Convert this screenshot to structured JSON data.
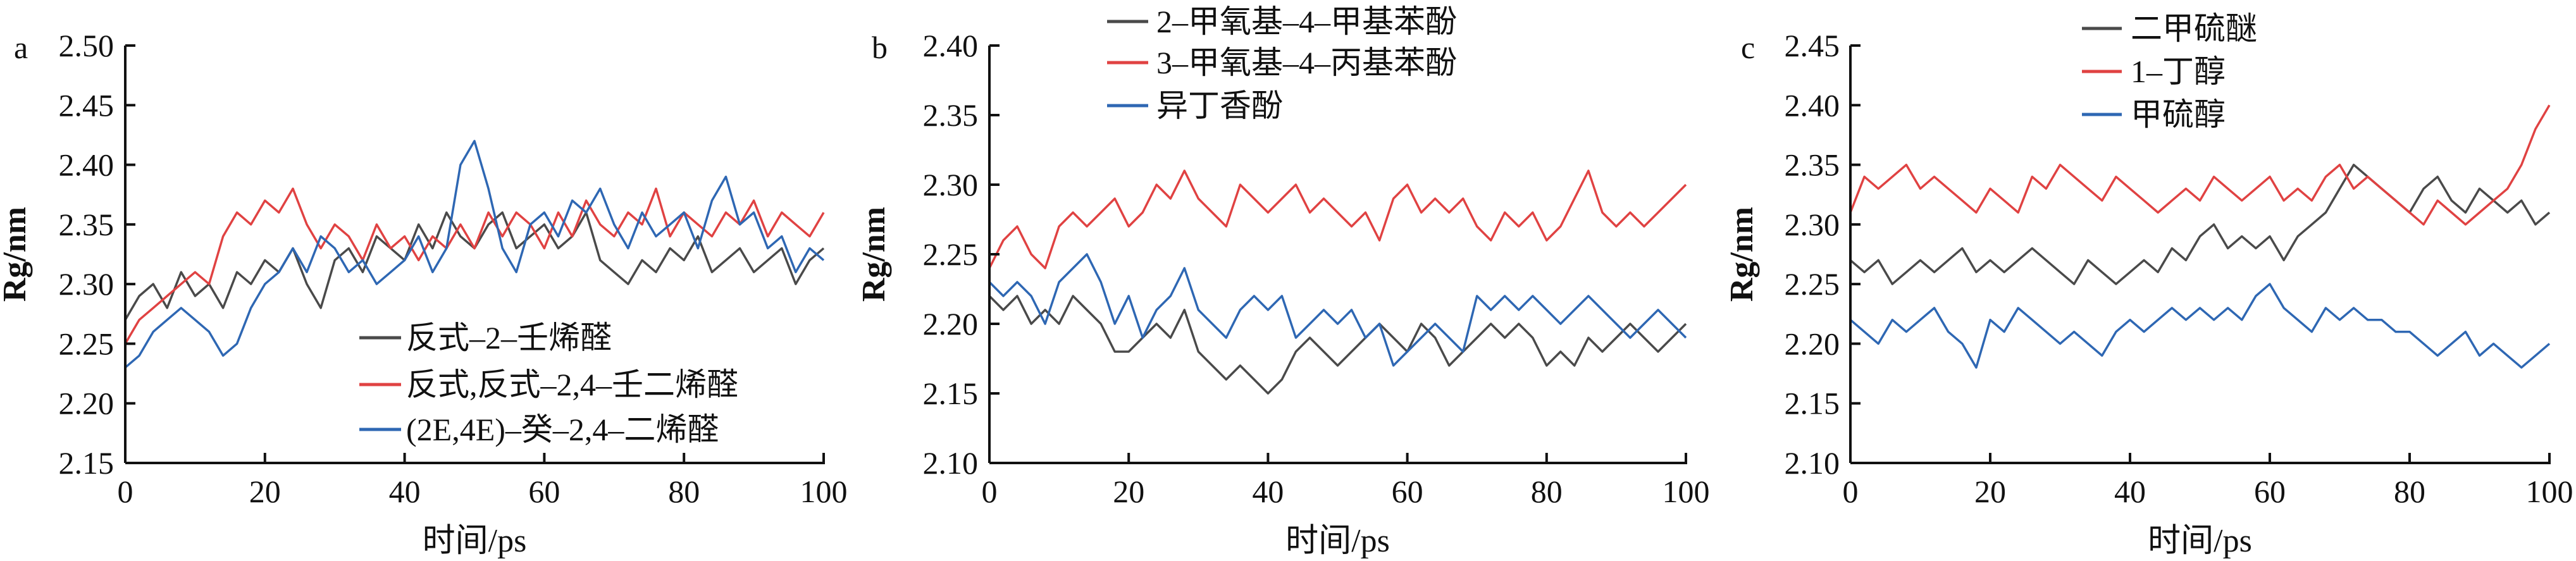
{
  "colors": {
    "gray": "#4a4a4a",
    "red": "#e04242",
    "blue": "#2e67b3"
  },
  "chart_data": [
    {
      "type": "line",
      "panel_label": "a",
      "xlabel": "时间/ps",
      "ylabel": "Rg/nm",
      "xlim": [
        0,
        100
      ],
      "ylim": [
        2.15,
        2.5
      ],
      "xticks": [
        "0",
        "20",
        "40",
        "60",
        "80",
        "100"
      ],
      "yticks": [
        "2.15",
        "2.20",
        "2.25",
        "2.30",
        "2.35",
        "2.40",
        "2.45",
        "2.50"
      ],
      "legend_position": "lower-right",
      "x_step": 2,
      "series": [
        {
          "name": "反式–2–壬烯醛",
          "color": "#4a4a4a",
          "values": [
            2.27,
            2.29,
            2.3,
            2.28,
            2.31,
            2.29,
            2.3,
            2.28,
            2.31,
            2.3,
            2.32,
            2.31,
            2.33,
            2.3,
            2.28,
            2.32,
            2.33,
            2.31,
            2.34,
            2.33,
            2.32,
            2.35,
            2.33,
            2.36,
            2.34,
            2.33,
            2.35,
            2.36,
            2.33,
            2.34,
            2.35,
            2.33,
            2.34,
            2.36,
            2.32,
            2.31,
            2.3,
            2.32,
            2.31,
            2.33,
            2.32,
            2.34,
            2.31,
            2.32,
            2.33,
            2.31,
            2.32,
            2.33,
            2.3,
            2.32,
            2.33
          ]
        },
        {
          "name": "反式,反式–2,4–壬二烯醛",
          "color": "#e04242",
          "values": [
            2.25,
            2.27,
            2.28,
            2.29,
            2.3,
            2.31,
            2.3,
            2.34,
            2.36,
            2.35,
            2.37,
            2.36,
            2.38,
            2.35,
            2.33,
            2.35,
            2.34,
            2.32,
            2.35,
            2.33,
            2.34,
            2.32,
            2.34,
            2.33,
            2.35,
            2.33,
            2.36,
            2.34,
            2.36,
            2.35,
            2.33,
            2.36,
            2.34,
            2.37,
            2.35,
            2.34,
            2.36,
            2.35,
            2.38,
            2.34,
            2.36,
            2.35,
            2.34,
            2.36,
            2.35,
            2.37,
            2.34,
            2.36,
            2.35,
            2.34,
            2.36
          ]
        },
        {
          "name": "(2E,4E)–癸–2,4–二烯醛",
          "color": "#2e67b3",
          "values": [
            2.23,
            2.24,
            2.26,
            2.27,
            2.28,
            2.27,
            2.26,
            2.24,
            2.25,
            2.28,
            2.3,
            2.31,
            2.33,
            2.31,
            2.34,
            2.33,
            2.31,
            2.32,
            2.3,
            2.31,
            2.32,
            2.34,
            2.31,
            2.33,
            2.4,
            2.42,
            2.38,
            2.33,
            2.31,
            2.35,
            2.36,
            2.34,
            2.37,
            2.36,
            2.38,
            2.35,
            2.33,
            2.36,
            2.34,
            2.35,
            2.36,
            2.33,
            2.37,
            2.39,
            2.35,
            2.36,
            2.33,
            2.34,
            2.31,
            2.33,
            2.32
          ]
        }
      ]
    },
    {
      "type": "line",
      "panel_label": "b",
      "xlabel": "时间/ps",
      "ylabel": "Rg/nm",
      "xlim": [
        0,
        100
      ],
      "ylim": [
        2.1,
        2.4
      ],
      "xticks": [
        "0",
        "20",
        "40",
        "60",
        "80",
        "100"
      ],
      "yticks": [
        "2.10",
        "2.15",
        "2.20",
        "2.25",
        "2.30",
        "2.35",
        "2.40"
      ],
      "legend_position": "top",
      "x_step": 2,
      "series": [
        {
          "name": "2–甲氧基–4–甲基苯酚",
          "color": "#4a4a4a",
          "values": [
            2.22,
            2.21,
            2.22,
            2.2,
            2.21,
            2.2,
            2.22,
            2.21,
            2.2,
            2.18,
            2.18,
            2.19,
            2.2,
            2.19,
            2.21,
            2.18,
            2.17,
            2.16,
            2.17,
            2.16,
            2.15,
            2.16,
            2.18,
            2.19,
            2.18,
            2.17,
            2.18,
            2.19,
            2.2,
            2.19,
            2.18,
            2.2,
            2.19,
            2.17,
            2.18,
            2.19,
            2.2,
            2.19,
            2.2,
            2.19,
            2.17,
            2.18,
            2.17,
            2.19,
            2.18,
            2.19,
            2.2,
            2.19,
            2.18,
            2.19,
            2.2
          ]
        },
        {
          "name": "3–甲氧基–4–丙基苯酚",
          "color": "#e04242",
          "values": [
            2.24,
            2.26,
            2.27,
            2.25,
            2.24,
            2.27,
            2.28,
            2.27,
            2.28,
            2.29,
            2.27,
            2.28,
            2.3,
            2.29,
            2.31,
            2.29,
            2.28,
            2.27,
            2.3,
            2.29,
            2.28,
            2.29,
            2.3,
            2.28,
            2.29,
            2.28,
            2.27,
            2.28,
            2.26,
            2.29,
            2.3,
            2.28,
            2.29,
            2.28,
            2.29,
            2.27,
            2.26,
            2.28,
            2.27,
            2.28,
            2.26,
            2.27,
            2.29,
            2.31,
            2.28,
            2.27,
            2.28,
            2.27,
            2.28,
            2.29,
            2.3
          ]
        },
        {
          "name": "异丁香酚",
          "color": "#2e67b3",
          "values": [
            2.23,
            2.22,
            2.23,
            2.22,
            2.2,
            2.23,
            2.24,
            2.25,
            2.23,
            2.2,
            2.22,
            2.19,
            2.21,
            2.22,
            2.24,
            2.21,
            2.2,
            2.19,
            2.21,
            2.22,
            2.21,
            2.22,
            2.19,
            2.2,
            2.21,
            2.2,
            2.21,
            2.19,
            2.2,
            2.17,
            2.18,
            2.19,
            2.2,
            2.19,
            2.18,
            2.22,
            2.21,
            2.22,
            2.21,
            2.22,
            2.21,
            2.2,
            2.21,
            2.22,
            2.21,
            2.2,
            2.19,
            2.2,
            2.21,
            2.2,
            2.19
          ]
        }
      ]
    },
    {
      "type": "line",
      "panel_label": "c",
      "xlabel": "时间/ps",
      "ylabel": "Rg/nm",
      "xlim": [
        0,
        100
      ],
      "ylim": [
        2.1,
        2.45
      ],
      "xticks": [
        "0",
        "20",
        "40",
        "60",
        "80",
        "100"
      ],
      "yticks": [
        "2.10",
        "2.15",
        "2.20",
        "2.25",
        "2.30",
        "2.35",
        "2.40",
        "2.45"
      ],
      "legend_position": "top",
      "x_step": 2,
      "series": [
        {
          "name": "二甲硫醚",
          "color": "#4a4a4a",
          "values": [
            2.27,
            2.26,
            2.27,
            2.25,
            2.26,
            2.27,
            2.26,
            2.27,
            2.28,
            2.26,
            2.27,
            2.26,
            2.27,
            2.28,
            2.27,
            2.26,
            2.25,
            2.27,
            2.26,
            2.25,
            2.26,
            2.27,
            2.26,
            2.28,
            2.27,
            2.29,
            2.3,
            2.28,
            2.29,
            2.28,
            2.29,
            2.27,
            2.29,
            2.3,
            2.31,
            2.33,
            2.35,
            2.34,
            2.33,
            2.32,
            2.31,
            2.33,
            2.34,
            2.32,
            2.31,
            2.33,
            2.32,
            2.31,
            2.32,
            2.3,
            2.31
          ]
        },
        {
          "name": "1–丁醇",
          "color": "#e04242",
          "values": [
            2.31,
            2.34,
            2.33,
            2.34,
            2.35,
            2.33,
            2.34,
            2.33,
            2.32,
            2.31,
            2.33,
            2.32,
            2.31,
            2.34,
            2.33,
            2.35,
            2.34,
            2.33,
            2.32,
            2.34,
            2.33,
            2.32,
            2.31,
            2.32,
            2.33,
            2.32,
            2.34,
            2.33,
            2.32,
            2.33,
            2.34,
            2.32,
            2.33,
            2.32,
            2.34,
            2.35,
            2.33,
            2.34,
            2.33,
            2.32,
            2.31,
            2.3,
            2.32,
            2.31,
            2.3,
            2.31,
            2.32,
            2.33,
            2.35,
            2.38,
            2.4
          ]
        },
        {
          "name": "甲硫醇",
          "color": "#2e67b3",
          "values": [
            2.22,
            2.21,
            2.2,
            2.22,
            2.21,
            2.22,
            2.23,
            2.21,
            2.2,
            2.18,
            2.22,
            2.21,
            2.23,
            2.22,
            2.21,
            2.2,
            2.21,
            2.2,
            2.19,
            2.21,
            2.22,
            2.21,
            2.22,
            2.23,
            2.22,
            2.23,
            2.22,
            2.23,
            2.22,
            2.24,
            2.25,
            2.23,
            2.22,
            2.21,
            2.23,
            2.22,
            2.23,
            2.22,
            2.22,
            2.21,
            2.21,
            2.2,
            2.19,
            2.2,
            2.21,
            2.19,
            2.2,
            2.19,
            2.18,
            2.19,
            2.2
          ]
        }
      ]
    }
  ]
}
